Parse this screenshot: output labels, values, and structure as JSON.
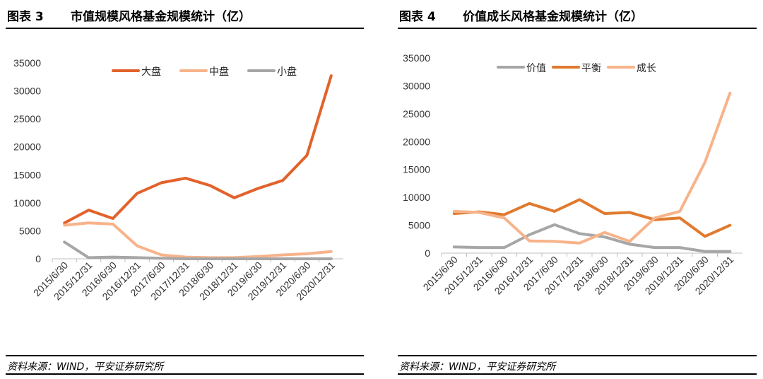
{
  "charts": [
    {
      "figure_label": "图表 3",
      "title": "市值规模风格基金规模统计（亿）",
      "source": "资料来源：WIND，平安证券研究所"
    },
    {
      "figure_label": "图表 4",
      "title": "价值成长风格基金规模统计（亿）",
      "source": "资料来源：WIND，平安证券研究所"
    }
  ],
  "chart_data": [
    {
      "type": "line",
      "title": "市值规模风格基金规模统计（亿）",
      "xlabel": "",
      "ylabel": "",
      "categories": [
        "2015/6/30",
        "2015/12/31",
        "2016/6/30",
        "2016/12/31",
        "2017/6/30",
        "2017/12/31",
        "2018/6/30",
        "2018/12/31",
        "2019/6/30",
        "2019/12/31",
        "2020/6/30",
        "2020/12/31"
      ],
      "ylim": [
        0,
        35000
      ],
      "yticks": [
        0,
        5000,
        10000,
        15000,
        20000,
        25000,
        30000,
        35000
      ],
      "grid": false,
      "legend_position": "top",
      "series": [
        {
          "name": "大盘",
          "color": "#E2622B",
          "values": [
            6400,
            8700,
            7200,
            11700,
            13600,
            14400,
            13100,
            10900,
            12600,
            14000,
            18500,
            32700
          ]
        },
        {
          "name": "中盘",
          "color": "#F7B38A",
          "values": [
            6000,
            6400,
            6200,
            2300,
            700,
            300,
            200,
            200,
            400,
            700,
            900,
            1300
          ]
        },
        {
          "name": "小盘",
          "color": "#A6A6A6",
          "values": [
            3000,
            200,
            300,
            200,
            100,
            0,
            0,
            0,
            0,
            0,
            0,
            0
          ]
        }
      ]
    },
    {
      "type": "line",
      "title": "价值成长风格基金规模统计（亿）",
      "xlabel": "",
      "ylabel": "",
      "categories": [
        "2015/6/30",
        "2015/12/31",
        "2016/6/30",
        "2016/12/31",
        "2017/6/30",
        "2017/12/31",
        "2018/6/30",
        "2018/12/31",
        "2019/6/30",
        "2019/12/31",
        "2020/6/30",
        "2020/12/31"
      ],
      "ylim": [
        0,
        35000
      ],
      "yticks": [
        0,
        5000,
        10000,
        15000,
        20000,
        25000,
        30000,
        35000
      ],
      "grid": false,
      "legend_position": "top",
      "series": [
        {
          "name": "价值",
          "color": "#A6A6A6",
          "values": [
            1100,
            1000,
            1000,
            3300,
            5100,
            3500,
            2900,
            1600,
            1000,
            1000,
            300,
            300
          ]
        },
        {
          "name": "平衡",
          "color": "#E07A2E",
          "values": [
            7100,
            7400,
            6900,
            8900,
            7500,
            9600,
            7100,
            7300,
            6000,
            6300,
            3000,
            5000
          ]
        },
        {
          "name": "成长",
          "color": "#F7B38A",
          "values": [
            7500,
            7300,
            6300,
            2200,
            2100,
            1800,
            3700,
            2100,
            6300,
            7500,
            16300,
            28700
          ]
        }
      ]
    }
  ]
}
